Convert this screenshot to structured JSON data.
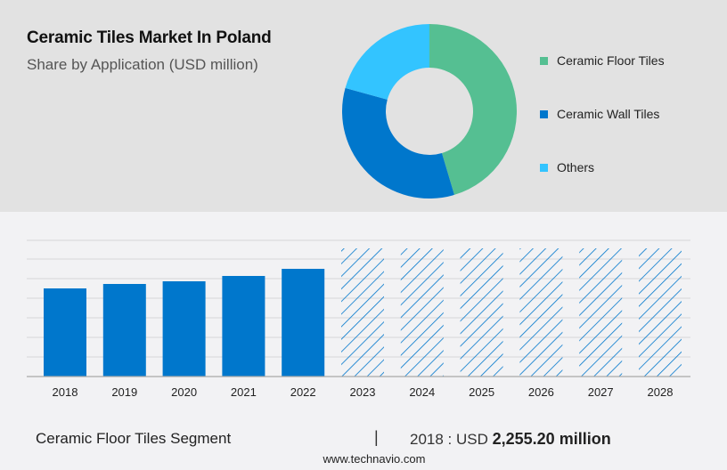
{
  "header": {
    "title": "Ceramic Tiles Market In Poland",
    "subtitle": "Share by Application (USD million)"
  },
  "legend": [
    {
      "label": "Ceramic Floor Tiles",
      "color": "#55bf92"
    },
    {
      "label": "Ceramic Wall Tiles",
      "color": "#0077cc"
    },
    {
      "label": "Others",
      "color": "#33c4ff"
    }
  ],
  "footer": {
    "segment": "Ceramic Floor Tiles Segment",
    "separator": "|",
    "year_prefix": "2018 : USD",
    "value": "2,255.20 million",
    "url": "www.technavio.com"
  },
  "chart_data": [
    {
      "type": "pie",
      "subtype": "donut",
      "title": "Ceramic Tiles Market In Poland",
      "subtitle": "Share by Application (USD million)",
      "categories": [
        "Ceramic Floor Tiles",
        "Ceramic Wall Tiles",
        "Others"
      ],
      "values": [
        45.4,
        33.9,
        20.7
      ],
      "colors": [
        "#55bf92",
        "#0077cc",
        "#33c4ff"
      ],
      "legend_position": "right"
    },
    {
      "type": "bar",
      "title": "Ceramic Floor Tiles Segment",
      "categories": [
        "2018",
        "2019",
        "2020",
        "2021",
        "2022",
        "2023",
        "2024",
        "2025",
        "2026",
        "2027",
        "2028"
      ],
      "values": [
        2255.2,
        2369,
        2437,
        2574,
        2756,
        null,
        null,
        null,
        null,
        null,
        null
      ],
      "forecast_years": [
        "2023",
        "2024",
        "2025",
        "2026",
        "2027",
        "2028"
      ],
      "bar_color": "#0077cc",
      "forecast_style": "hatched",
      "xlabel": "",
      "ylabel": "USD million",
      "grid": true,
      "annotation": "2018 : USD 2,255.20 million"
    }
  ]
}
